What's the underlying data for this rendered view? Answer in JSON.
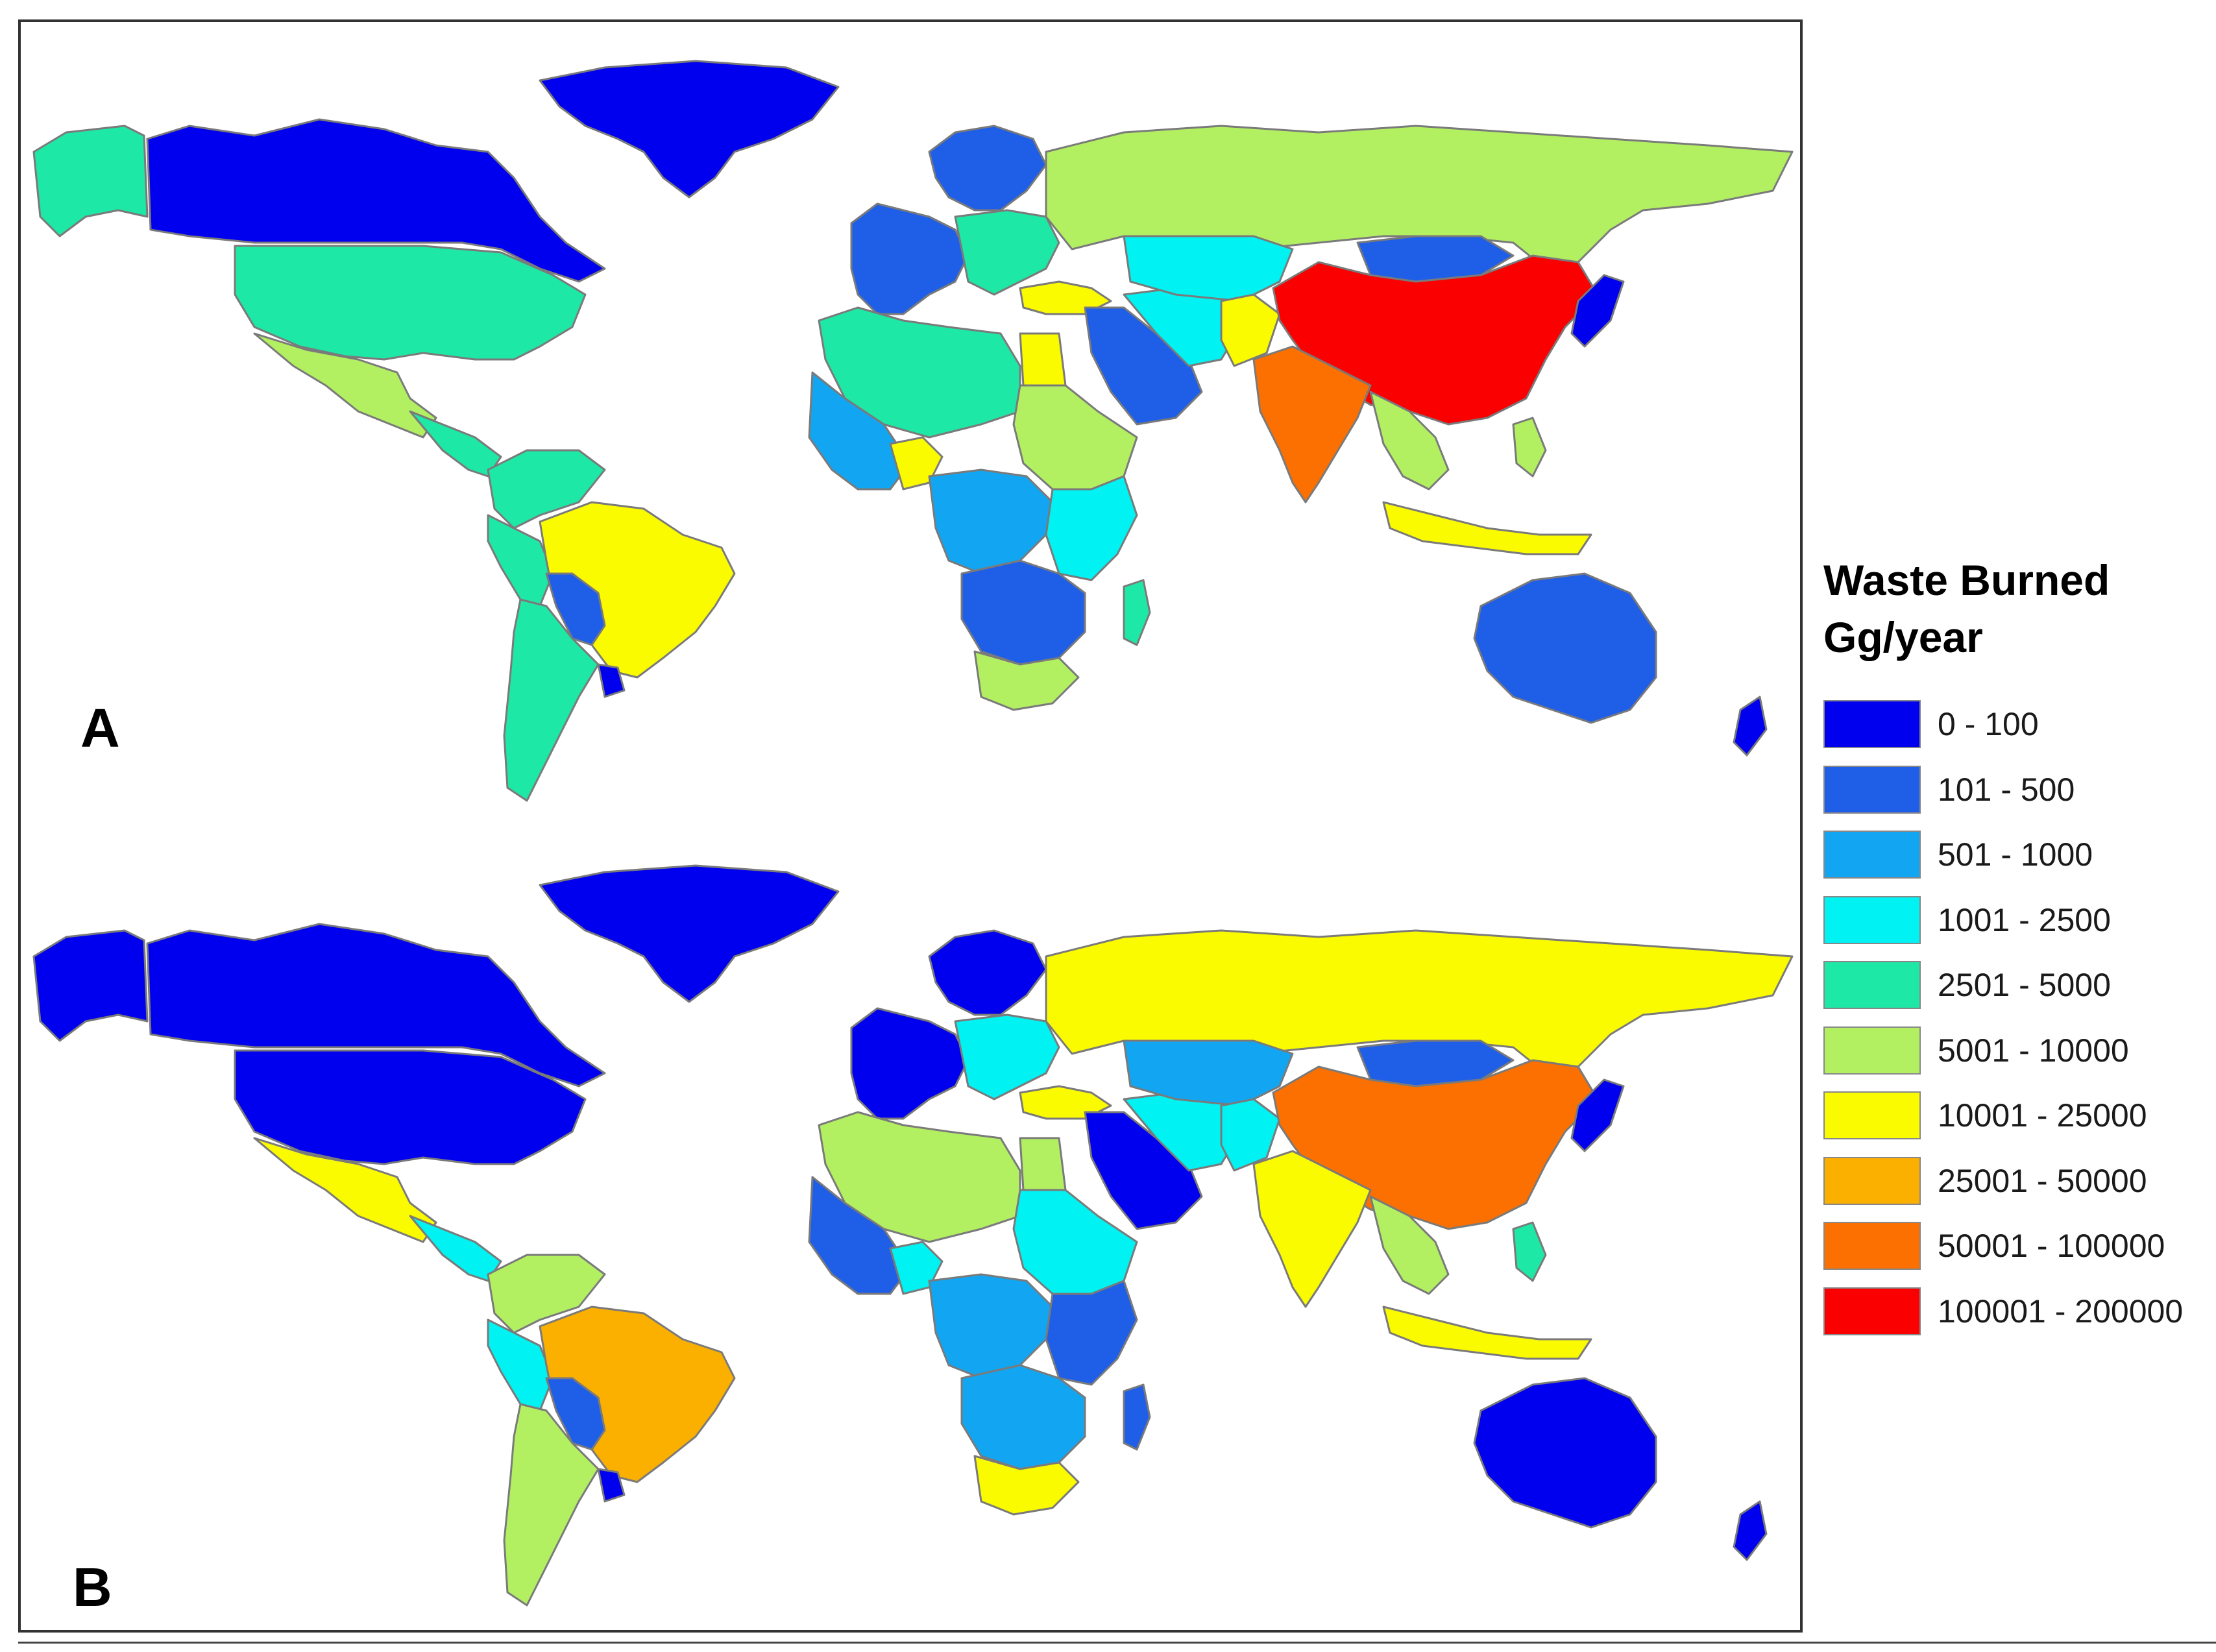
{
  "legend": {
    "title_line1": "Waste Burned",
    "title_line2": "Gg/year",
    "items": [
      {
        "label": "0 - 100",
        "color": "#0000ee"
      },
      {
        "label": "101 - 500",
        "color": "#1f5fe8"
      },
      {
        "label": "501 - 1000",
        "color": "#12a6f2"
      },
      {
        "label": "1001 - 2500",
        "color": "#00f2f2"
      },
      {
        "label": "2501 - 5000",
        "color": "#1ee8a6"
      },
      {
        "label": "5001 - 10000",
        "color": "#b2f062"
      },
      {
        "label": "10001 - 25000",
        "color": "#fbfb00"
      },
      {
        "label": "25001 - 50000",
        "color": "#fbb000"
      },
      {
        "label": "50001 - 100000",
        "color": "#fb7000"
      },
      {
        "label": "100001 - 200000",
        "color": "#fb0000"
      }
    ]
  },
  "panels": [
    {
      "letter": "A",
      "regions": [
        {
          "name": "alaska",
          "class": 4
        },
        {
          "name": "canada",
          "class": 0
        },
        {
          "name": "greenland",
          "class": 0
        },
        {
          "name": "usa",
          "class": 4
        },
        {
          "name": "mexico",
          "class": 5
        },
        {
          "name": "central-america",
          "class": 4
        },
        {
          "name": "colombia-venezuela",
          "class": 4
        },
        {
          "name": "peru",
          "class": 4
        },
        {
          "name": "brazil",
          "class": 6
        },
        {
          "name": "bolivia-paraguay",
          "class": 1
        },
        {
          "name": "argentina-chile",
          "class": 4
        },
        {
          "name": "uruguay",
          "class": 0
        },
        {
          "name": "western-europe",
          "class": 1
        },
        {
          "name": "scandinavia",
          "class": 1
        },
        {
          "name": "eastern-europe",
          "class": 4
        },
        {
          "name": "russia",
          "class": 5
        },
        {
          "name": "turkey",
          "class": 6
        },
        {
          "name": "north-africa",
          "class": 4
        },
        {
          "name": "west-africa",
          "class": 2
        },
        {
          "name": "nigeria",
          "class": 6
        },
        {
          "name": "egypt",
          "class": 6
        },
        {
          "name": "sudan-ethiopia",
          "class": 5
        },
        {
          "name": "central-africa",
          "class": 2
        },
        {
          "name": "east-africa",
          "class": 3
        },
        {
          "name": "southern-africa",
          "class": 1
        },
        {
          "name": "south-africa",
          "class": 5
        },
        {
          "name": "madagascar",
          "class": 4
        },
        {
          "name": "middle-east",
          "class": 1
        },
        {
          "name": "iran",
          "class": 3
        },
        {
          "name": "central-asia",
          "class": 3
        },
        {
          "name": "pakistan",
          "class": 6
        },
        {
          "name": "mongolia",
          "class": 1
        },
        {
          "name": "china",
          "class": 9
        },
        {
          "name": "india",
          "class": 8
        },
        {
          "name": "southeast-asia",
          "class": 5
        },
        {
          "name": "indonesia",
          "class": 6
        },
        {
          "name": "philippines",
          "class": 5
        },
        {
          "name": "japan",
          "class": 0
        },
        {
          "name": "australia",
          "class": 1
        },
        {
          "name": "new-zealand",
          "class": 0
        }
      ]
    },
    {
      "letter": "B",
      "regions": [
        {
          "name": "alaska",
          "class": 0
        },
        {
          "name": "canada",
          "class": 0
        },
        {
          "name": "greenland",
          "class": 0
        },
        {
          "name": "usa",
          "class": 0
        },
        {
          "name": "mexico",
          "class": 6
        },
        {
          "name": "central-america",
          "class": 3
        },
        {
          "name": "colombia-venezuela",
          "class": 5
        },
        {
          "name": "peru",
          "class": 3
        },
        {
          "name": "brazil",
          "class": 7
        },
        {
          "name": "bolivia-paraguay",
          "class": 1
        },
        {
          "name": "argentina-chile",
          "class": 5
        },
        {
          "name": "uruguay",
          "class": 0
        },
        {
          "name": "western-europe",
          "class": 0
        },
        {
          "name": "scandinavia",
          "class": 0
        },
        {
          "name": "eastern-europe",
          "class": 3
        },
        {
          "name": "russia",
          "class": 6
        },
        {
          "name": "turkey",
          "class": 6
        },
        {
          "name": "north-africa",
          "class": 5
        },
        {
          "name": "west-africa",
          "class": 1
        },
        {
          "name": "nigeria",
          "class": 3
        },
        {
          "name": "egypt",
          "class": 5
        },
        {
          "name": "sudan-ethiopia",
          "class": 3
        },
        {
          "name": "central-africa",
          "class": 2
        },
        {
          "name": "east-africa",
          "class": 1
        },
        {
          "name": "southern-africa",
          "class": 2
        },
        {
          "name": "south-africa",
          "class": 6
        },
        {
          "name": "madagascar",
          "class": 1
        },
        {
          "name": "middle-east",
          "class": 0
        },
        {
          "name": "iran",
          "class": 3
        },
        {
          "name": "central-asia",
          "class": 2
        },
        {
          "name": "pakistan",
          "class": 3
        },
        {
          "name": "mongolia",
          "class": 1
        },
        {
          "name": "china",
          "class": 8
        },
        {
          "name": "india",
          "class": 6
        },
        {
          "name": "southeast-asia",
          "class": 5
        },
        {
          "name": "indonesia",
          "class": 6
        },
        {
          "name": "philippines",
          "class": 4
        },
        {
          "name": "japan",
          "class": 0
        },
        {
          "name": "australia",
          "class": 0
        },
        {
          "name": "new-zealand",
          "class": 0
        }
      ]
    }
  ]
}
